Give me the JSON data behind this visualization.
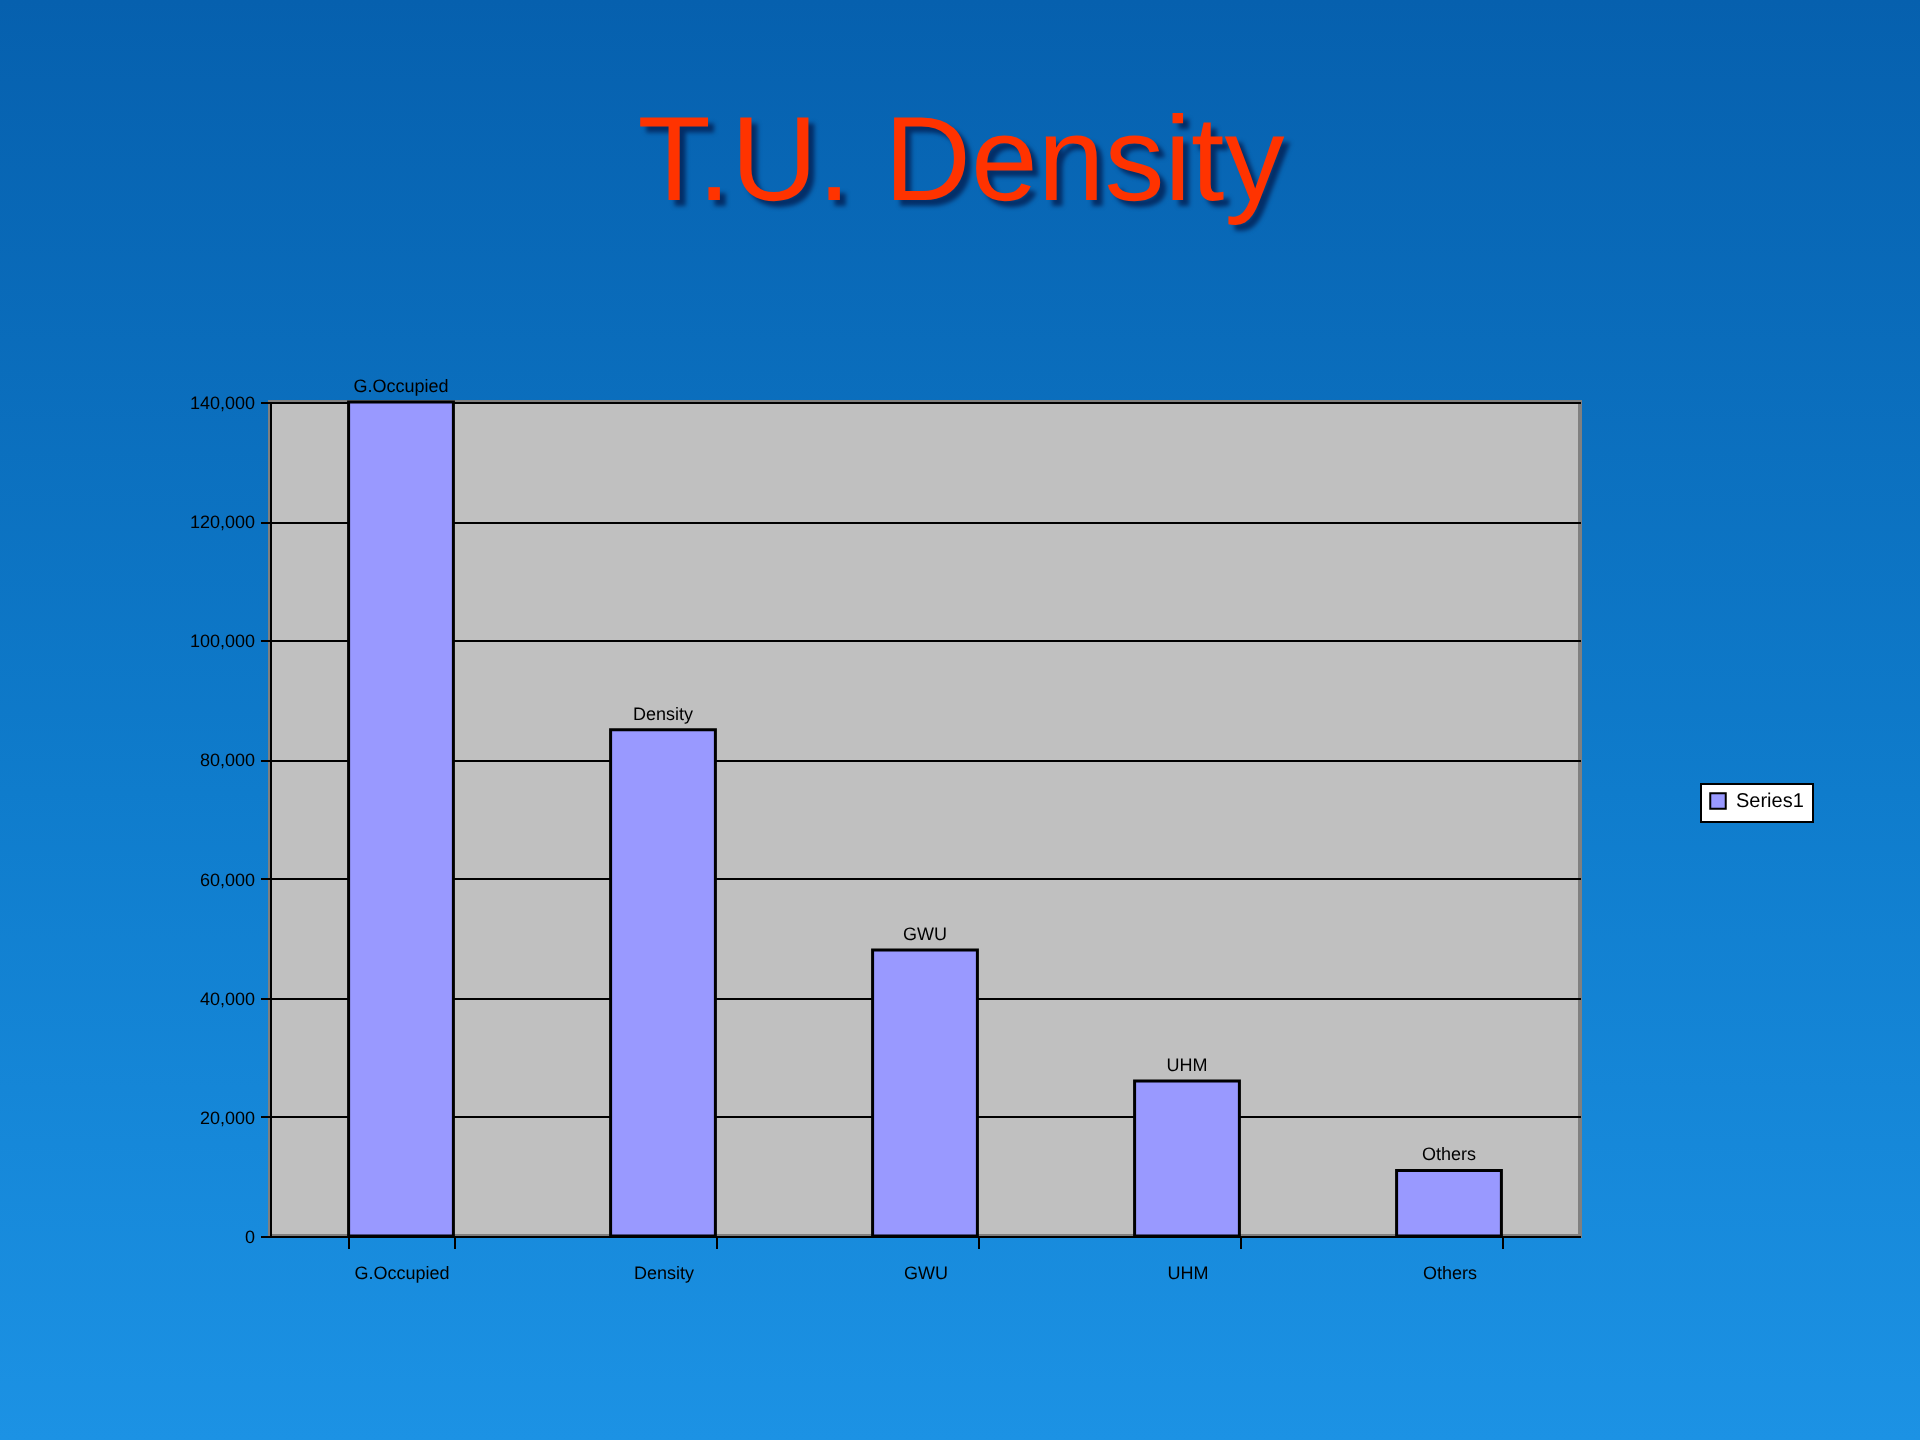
{
  "chart_data": {
    "type": "bar",
    "title": "T.U. Density",
    "categories": [
      "G.Occupied",
      "Density",
      "GWU",
      "UHM",
      "Others"
    ],
    "series": [
      {
        "name": "Series1",
        "color": "#9999ff",
        "values": [
          140000,
          85000,
          48000,
          26000,
          11000
        ],
        "value_labels": [
          "G.Occupied",
          "Density",
          "GWU",
          "UHM",
          "Others"
        ]
      }
    ],
    "ylim": [
      0,
      140000
    ],
    "yticks": [
      0,
      {
        "value": 20000,
        "label": "20,000"
      },
      {
        "value": 40000,
        "label": "40,000"
      },
      {
        "value": 60000,
        "label": "60,000"
      },
      {
        "value": 80000,
        "label": "80,000"
      },
      {
        "value": 100000,
        "label": "100,000"
      },
      {
        "value": 120000,
        "label": "120,000"
      },
      {
        "value": 140000,
        "label": "140,000"
      }
    ],
    "grid": "y",
    "legend": "right"
  }
}
